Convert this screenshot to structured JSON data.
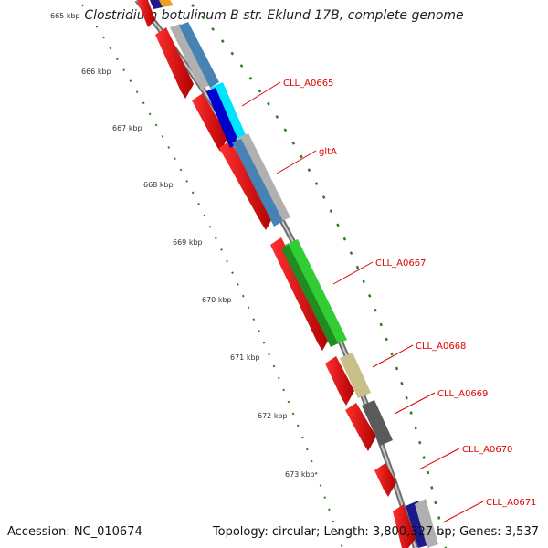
{
  "title": "Clostridium botulinum B str. Eklund 17B, complete genome",
  "footer": {
    "accession": "Accession: NC_010674",
    "topology": "Topology: circular; Length: 3,800,327 bp; Genes: 3,537"
  },
  "ticks": [
    "665 kbp",
    "666 kbp",
    "667 kbp",
    "668 kbp",
    "669 kbp",
    "670 kbp",
    "671 kbp",
    "672 kbp",
    "673 kbp"
  ],
  "gene_labels": [
    "CLL_A0665",
    "gltA",
    "CLL_A0667",
    "CLL_A0668",
    "CLL_A0669",
    "CLL_A0670",
    "CLL_A0671"
  ],
  "colors": {
    "backbone": "#8c8c8c",
    "gene": "#e80000",
    "tick_dots": "#2e7d1f",
    "label": "#e00000"
  },
  "feature_colors": [
    "#b0b0b0",
    "#4682b4",
    "#00e5ff",
    "#0000cc",
    "#32cd32",
    "#c8c088",
    "#5a5a5a",
    "#1a1a8c"
  ]
}
